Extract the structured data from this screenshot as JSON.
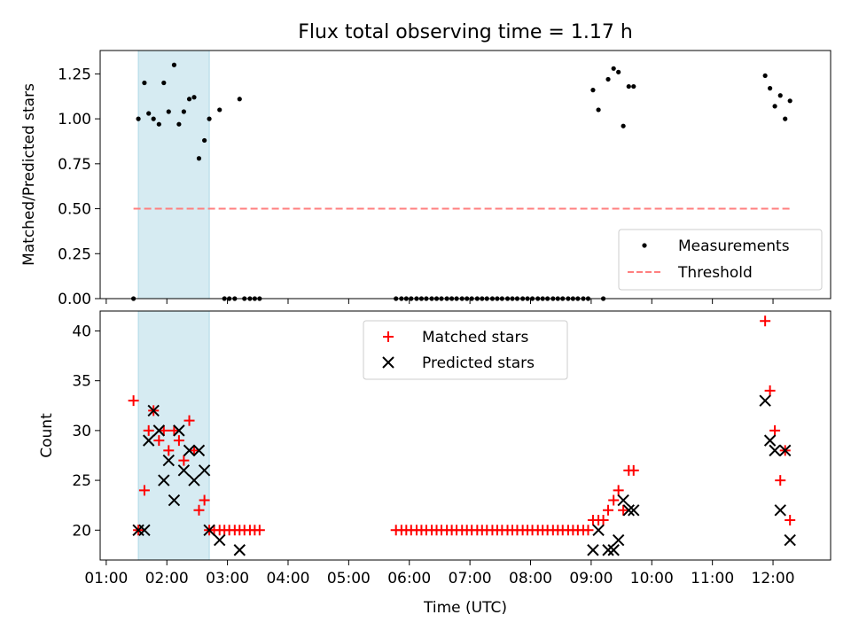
{
  "figure_title": "Flux total observing time = 1.17 h",
  "colors": {
    "measurement": "#000000",
    "threshold": "#ff7f7f",
    "matched": "#ff0000",
    "predicted": "#000000",
    "shade": "#add8e6"
  },
  "chart_data": [
    {
      "type": "scatter",
      "title": "Flux total observing time = 1.17 h",
      "xlabel": "",
      "ylabel": "Matched/Predicted stars",
      "x_unit": "hours UTC",
      "xlim": [
        0.9,
        12.95
      ],
      "ylim": [
        0.0,
        1.38
      ],
      "yticks": [
        0.0,
        0.25,
        0.5,
        0.75,
        1.0,
        1.25
      ],
      "ytick_labels": [
        "0.00",
        "0.25",
        "0.50",
        "0.75",
        "1.00",
        "1.25"
      ],
      "shaded_span": [
        1.53,
        2.7
      ],
      "legend_position": "lower right",
      "legend": [
        {
          "label": "Measurements",
          "marker": "dot"
        },
        {
          "label": "Threshold",
          "marker": "dashed-line"
        }
      ],
      "threshold": {
        "name": "Threshold",
        "y": 0.5,
        "x_range": [
          1.45,
          12.28
        ]
      },
      "series": [
        {
          "name": "Measurements",
          "marker": "dot",
          "points": [
            [
              1.45,
              0.0
            ],
            [
              1.53,
              1.0
            ],
            [
              1.63,
              1.2
            ],
            [
              1.7,
              1.03
            ],
            [
              1.78,
              1.0
            ],
            [
              1.87,
              0.97
            ],
            [
              1.95,
              1.2
            ],
            [
              2.03,
              1.04
            ],
            [
              2.12,
              1.3
            ],
            [
              2.2,
              0.97
            ],
            [
              2.28,
              1.04
            ],
            [
              2.37,
              1.11
            ],
            [
              2.45,
              1.12
            ],
            [
              2.53,
              0.78
            ],
            [
              2.62,
              0.88
            ],
            [
              2.7,
              1.0
            ],
            [
              2.87,
              1.05
            ],
            [
              2.95,
              0.0
            ],
            [
              3.03,
              0.0
            ],
            [
              3.12,
              0.0
            ],
            [
              3.2,
              1.11
            ],
            [
              3.28,
              0.0
            ],
            [
              3.37,
              0.0
            ],
            [
              3.45,
              0.0
            ],
            [
              3.53,
              0.0
            ],
            [
              5.78,
              0.0
            ],
            [
              5.87,
              0.0
            ],
            [
              5.95,
              0.0
            ],
            [
              6.03,
              0.0
            ],
            [
              6.12,
              0.0
            ],
            [
              6.2,
              0.0
            ],
            [
              6.28,
              0.0
            ],
            [
              6.37,
              0.0
            ],
            [
              6.45,
              0.0
            ],
            [
              6.53,
              0.0
            ],
            [
              6.62,
              0.0
            ],
            [
              6.7,
              0.0
            ],
            [
              6.78,
              0.0
            ],
            [
              6.87,
              0.0
            ],
            [
              6.95,
              0.0
            ],
            [
              7.03,
              0.0
            ],
            [
              7.12,
              0.0
            ],
            [
              7.2,
              0.0
            ],
            [
              7.28,
              0.0
            ],
            [
              7.37,
              0.0
            ],
            [
              7.45,
              0.0
            ],
            [
              7.53,
              0.0
            ],
            [
              7.62,
              0.0
            ],
            [
              7.7,
              0.0
            ],
            [
              7.78,
              0.0
            ],
            [
              7.87,
              0.0
            ],
            [
              7.95,
              0.0
            ],
            [
              8.03,
              0.0
            ],
            [
              8.12,
              0.0
            ],
            [
              8.2,
              0.0
            ],
            [
              8.28,
              0.0
            ],
            [
              8.37,
              0.0
            ],
            [
              8.45,
              0.0
            ],
            [
              8.53,
              0.0
            ],
            [
              8.62,
              0.0
            ],
            [
              8.7,
              0.0
            ],
            [
              8.78,
              0.0
            ],
            [
              8.87,
              0.0
            ],
            [
              8.95,
              0.0
            ],
            [
              9.03,
              1.16
            ],
            [
              9.12,
              1.05
            ],
            [
              9.2,
              0.0
            ],
            [
              9.28,
              1.22
            ],
            [
              9.37,
              1.28
            ],
            [
              9.45,
              1.26
            ],
            [
              9.53,
              0.96
            ],
            [
              9.62,
              1.18
            ],
            [
              9.7,
              1.18
            ],
            [
              11.87,
              1.24
            ],
            [
              11.95,
              1.17
            ],
            [
              12.03,
              1.07
            ],
            [
              12.12,
              1.13
            ],
            [
              12.2,
              1.0
            ],
            [
              12.28,
              1.1
            ]
          ]
        }
      ]
    },
    {
      "type": "scatter",
      "title": "",
      "xlabel": "Time (UTC)",
      "ylabel": "Count",
      "x_unit": "hours UTC",
      "xlim": [
        0.9,
        12.95
      ],
      "ylim": [
        17.0,
        42.0
      ],
      "xticks": [
        1,
        2,
        3,
        4,
        5,
        6,
        7,
        8,
        9,
        10,
        11,
        12
      ],
      "xtick_labels": [
        "01:00",
        "02:00",
        "03:00",
        "04:00",
        "05:00",
        "06:00",
        "07:00",
        "08:00",
        "09:00",
        "10:00",
        "11:00",
        "12:00"
      ],
      "yticks": [
        20,
        25,
        30,
        35,
        40
      ],
      "ytick_labels": [
        "20",
        "25",
        "30",
        "35",
        "40"
      ],
      "shaded_span": [
        1.53,
        2.7
      ],
      "legend_position": "upper center",
      "legend": [
        {
          "label": "Matched stars",
          "marker": "plus"
        },
        {
          "label": "Predicted stars",
          "marker": "x"
        }
      ],
      "series": [
        {
          "name": "Matched stars",
          "marker": "plus",
          "points": [
            [
              1.45,
              33
            ],
            [
              1.53,
              20
            ],
            [
              1.63,
              24
            ],
            [
              1.7,
              30
            ],
            [
              1.78,
              32
            ],
            [
              1.87,
              29
            ],
            [
              1.95,
              30
            ],
            [
              2.03,
              28
            ],
            [
              2.12,
              30
            ],
            [
              2.2,
              29
            ],
            [
              2.28,
              27
            ],
            [
              2.37,
              31
            ],
            [
              2.45,
              28
            ],
            [
              2.53,
              22
            ],
            [
              2.62,
              23
            ],
            [
              2.7,
              20
            ],
            [
              2.78,
              20
            ],
            [
              2.87,
              20
            ],
            [
              2.95,
              20
            ],
            [
              3.03,
              20
            ],
            [
              3.12,
              20
            ],
            [
              3.2,
              20
            ],
            [
              3.28,
              20
            ],
            [
              3.37,
              20
            ],
            [
              3.45,
              20
            ],
            [
              3.53,
              20
            ],
            [
              5.78,
              20
            ],
            [
              5.87,
              20
            ],
            [
              5.95,
              20
            ],
            [
              6.03,
              20
            ],
            [
              6.12,
              20
            ],
            [
              6.2,
              20
            ],
            [
              6.28,
              20
            ],
            [
              6.37,
              20
            ],
            [
              6.45,
              20
            ],
            [
              6.53,
              20
            ],
            [
              6.62,
              20
            ],
            [
              6.7,
              20
            ],
            [
              6.78,
              20
            ],
            [
              6.87,
              20
            ],
            [
              6.95,
              20
            ],
            [
              7.03,
              20
            ],
            [
              7.12,
              20
            ],
            [
              7.2,
              20
            ],
            [
              7.28,
              20
            ],
            [
              7.37,
              20
            ],
            [
              7.45,
              20
            ],
            [
              7.53,
              20
            ],
            [
              7.62,
              20
            ],
            [
              7.7,
              20
            ],
            [
              7.78,
              20
            ],
            [
              7.87,
              20
            ],
            [
              7.95,
              20
            ],
            [
              8.03,
              20
            ],
            [
              8.12,
              20
            ],
            [
              8.2,
              20
            ],
            [
              8.28,
              20
            ],
            [
              8.37,
              20
            ],
            [
              8.45,
              20
            ],
            [
              8.53,
              20
            ],
            [
              8.62,
              20
            ],
            [
              8.7,
              20
            ],
            [
              8.78,
              20
            ],
            [
              8.87,
              20
            ],
            [
              8.95,
              20
            ],
            [
              9.03,
              21
            ],
            [
              9.12,
              21
            ],
            [
              9.2,
              21
            ],
            [
              9.28,
              22
            ],
            [
              9.37,
              23
            ],
            [
              9.45,
              24
            ],
            [
              9.53,
              22
            ],
            [
              9.62,
              26
            ],
            [
              9.7,
              26
            ],
            [
              11.87,
              41
            ],
            [
              11.95,
              34
            ],
            [
              12.03,
              30
            ],
            [
              12.12,
              25
            ],
            [
              12.2,
              28
            ],
            [
              12.28,
              21
            ]
          ]
        },
        {
          "name": "Predicted stars",
          "marker": "x",
          "points": [
            [
              1.53,
              20
            ],
            [
              1.63,
              20
            ],
            [
              1.7,
              29
            ],
            [
              1.78,
              32
            ],
            [
              1.87,
              30
            ],
            [
              1.95,
              25
            ],
            [
              2.03,
              27
            ],
            [
              2.12,
              23
            ],
            [
              2.2,
              30
            ],
            [
              2.28,
              26
            ],
            [
              2.37,
              28
            ],
            [
              2.45,
              25
            ],
            [
              2.53,
              28
            ],
            [
              2.62,
              26
            ],
            [
              2.7,
              20
            ],
            [
              2.87,
              19
            ],
            [
              3.2,
              18
            ],
            [
              9.03,
              18
            ],
            [
              9.12,
              20
            ],
            [
              9.28,
              18
            ],
            [
              9.37,
              18
            ],
            [
              9.45,
              19
            ],
            [
              9.53,
              23
            ],
            [
              9.62,
              22
            ],
            [
              9.7,
              22
            ],
            [
              11.87,
              33
            ],
            [
              11.95,
              29
            ],
            [
              12.03,
              28
            ],
            [
              12.12,
              22
            ],
            [
              12.2,
              28
            ],
            [
              12.28,
              19
            ]
          ]
        }
      ]
    }
  ]
}
